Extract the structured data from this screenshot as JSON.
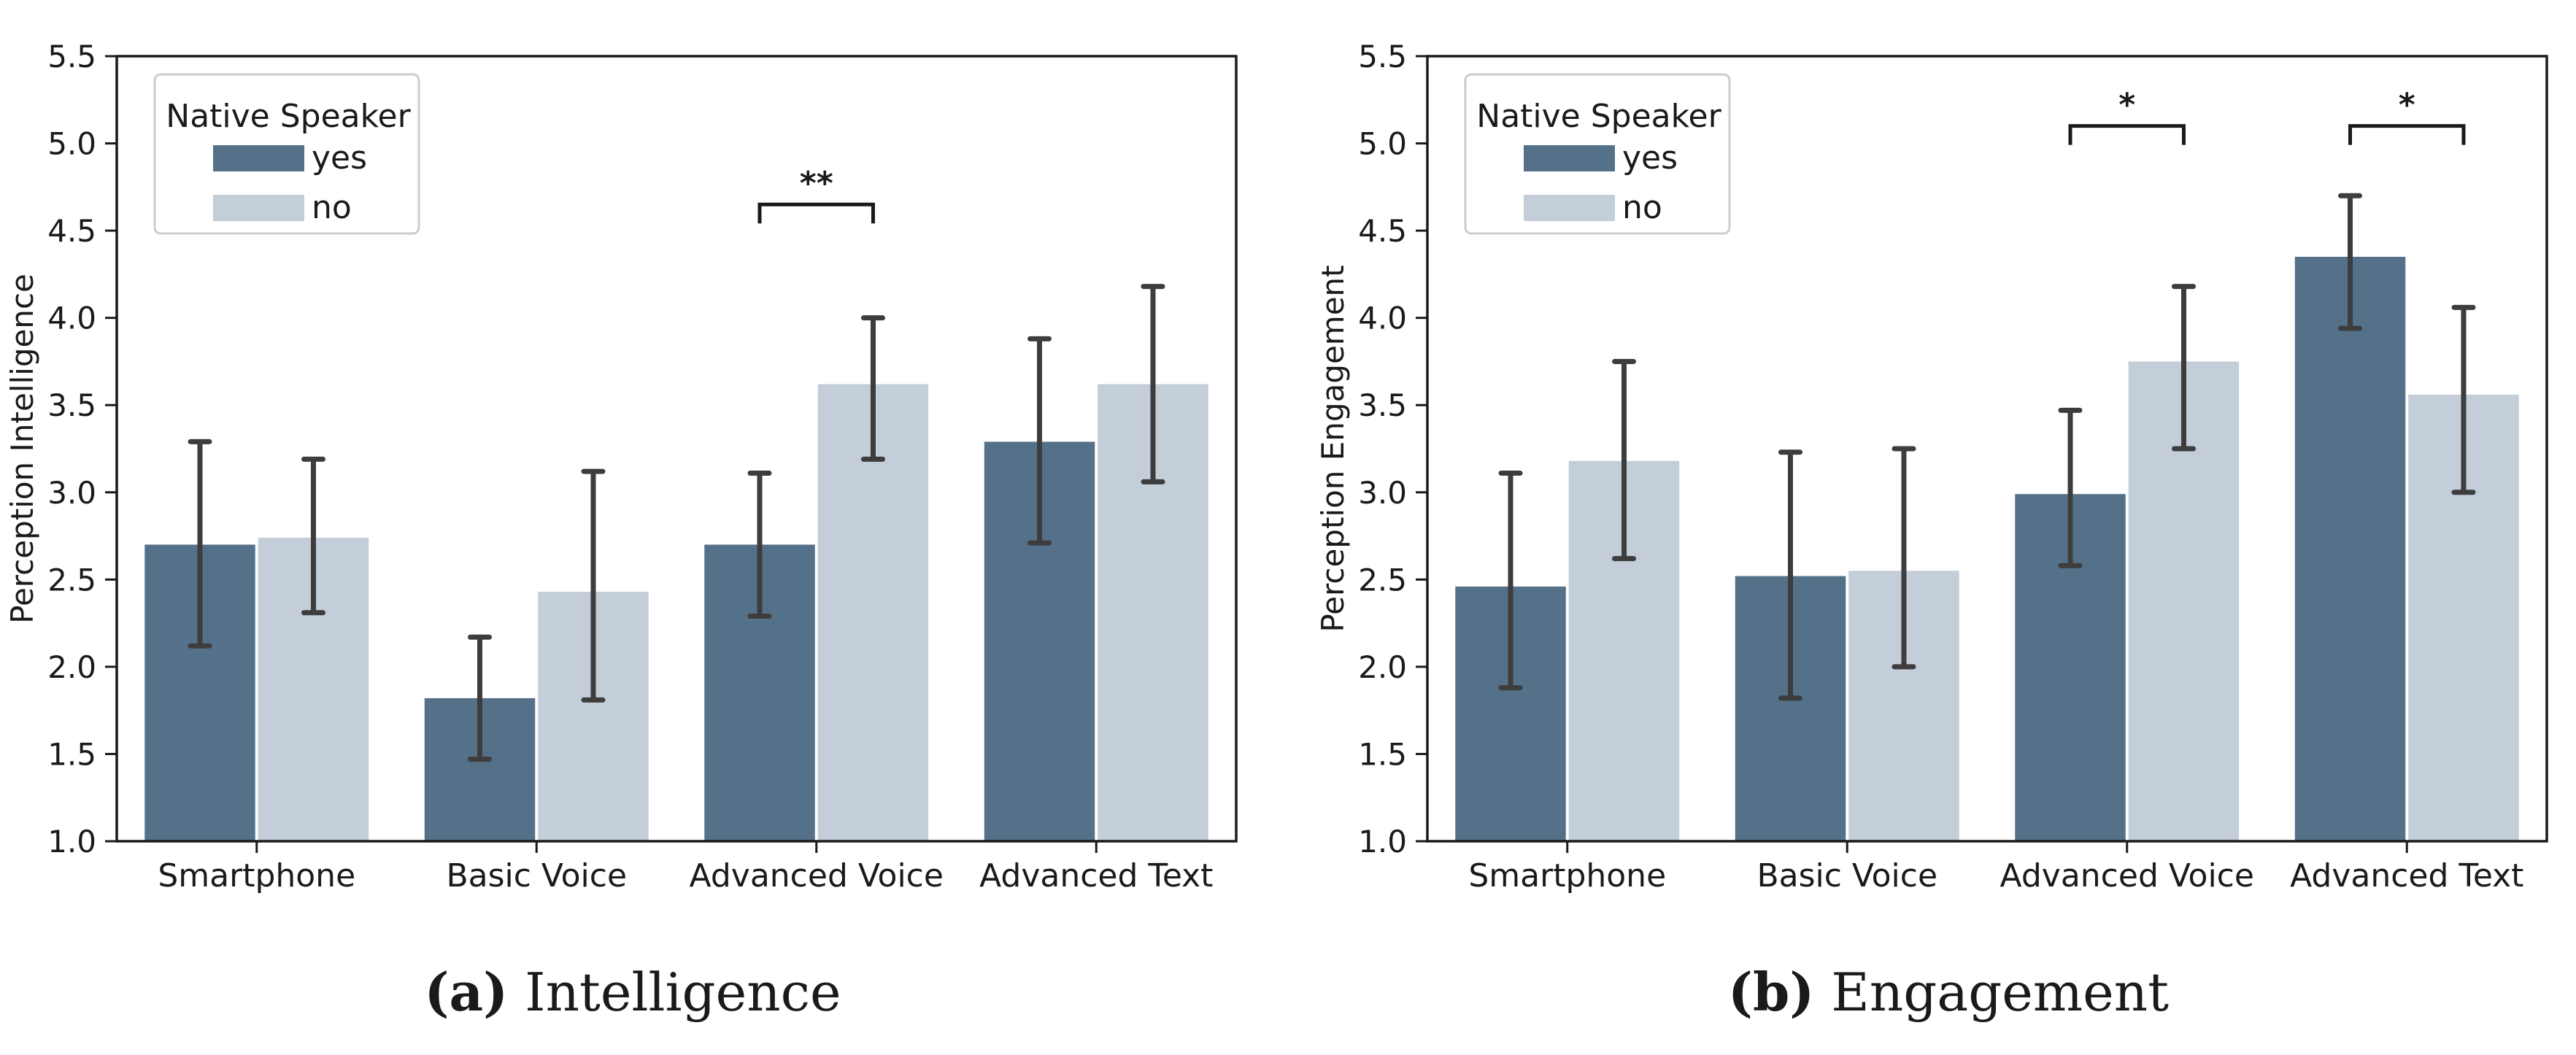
{
  "colors": {
    "yes": "#557189",
    "no": "#c3ced8",
    "errorbar": "#3d3d3d",
    "axis": "#1a1a1a"
  },
  "legend": {
    "title": "Native Speaker",
    "items": [
      {
        "label": "yes",
        "color": "#557189"
      },
      {
        "label": "no",
        "color": "#c3ced8"
      }
    ]
  },
  "chart_data": [
    {
      "type": "bar",
      "caption_prefix": "(a)",
      "caption_text": "Intelligence",
      "ylabel": "Perception Intelligence",
      "ylim": [
        1.0,
        5.5
      ],
      "yticks": [
        "1.0",
        "1.5",
        "2.0",
        "2.5",
        "3.0",
        "3.5",
        "4.0",
        "4.5",
        "5.0",
        "5.5"
      ],
      "categories": [
        "Smartphone",
        "Basic Voice",
        "Advanced Voice",
        "Advanced Text"
      ],
      "legend_position": "top-left",
      "series": [
        {
          "name": "yes",
          "values": [
            2.7,
            1.82,
            2.7,
            3.29
          ],
          "err_low": [
            2.12,
            1.47,
            2.29,
            2.71
          ],
          "err_high": [
            3.29,
            2.17,
            3.11,
            3.88
          ]
        },
        {
          "name": "no",
          "values": [
            2.74,
            2.43,
            3.62,
            3.62
          ],
          "err_low": [
            2.31,
            1.81,
            3.19,
            3.06
          ],
          "err_high": [
            3.19,
            3.12,
            4.0,
            4.18
          ]
        }
      ],
      "significance": [
        {
          "category": 2,
          "label": "**",
          "y": 4.65
        }
      ]
    },
    {
      "type": "bar",
      "caption_prefix": "(b)",
      "caption_text": "Engagement",
      "ylabel": "Perception Engagement",
      "ylim": [
        1.0,
        5.5
      ],
      "yticks": [
        "1.0",
        "1.5",
        "2.0",
        "2.5",
        "3.0",
        "3.5",
        "4.0",
        "4.5",
        "5.0",
        "5.5"
      ],
      "categories": [
        "Smartphone",
        "Basic Voice",
        "Advanced Voice",
        "Advanced Text"
      ],
      "legend_position": "top-left",
      "series": [
        {
          "name": "yes",
          "values": [
            2.46,
            2.52,
            2.99,
            4.35
          ],
          "err_low": [
            1.88,
            1.82,
            2.58,
            3.94
          ],
          "err_high": [
            3.11,
            3.23,
            3.47,
            4.7
          ]
        },
        {
          "name": "no",
          "values": [
            3.18,
            2.55,
            3.75,
            3.56
          ],
          "err_low": [
            2.62,
            2.0,
            3.25,
            3.0
          ],
          "err_high": [
            3.75,
            3.25,
            4.18,
            4.06
          ]
        }
      ],
      "significance": [
        {
          "category": 2,
          "label": "*",
          "y": 5.1
        },
        {
          "category": 3,
          "label": "*",
          "y": 5.1
        }
      ]
    }
  ]
}
